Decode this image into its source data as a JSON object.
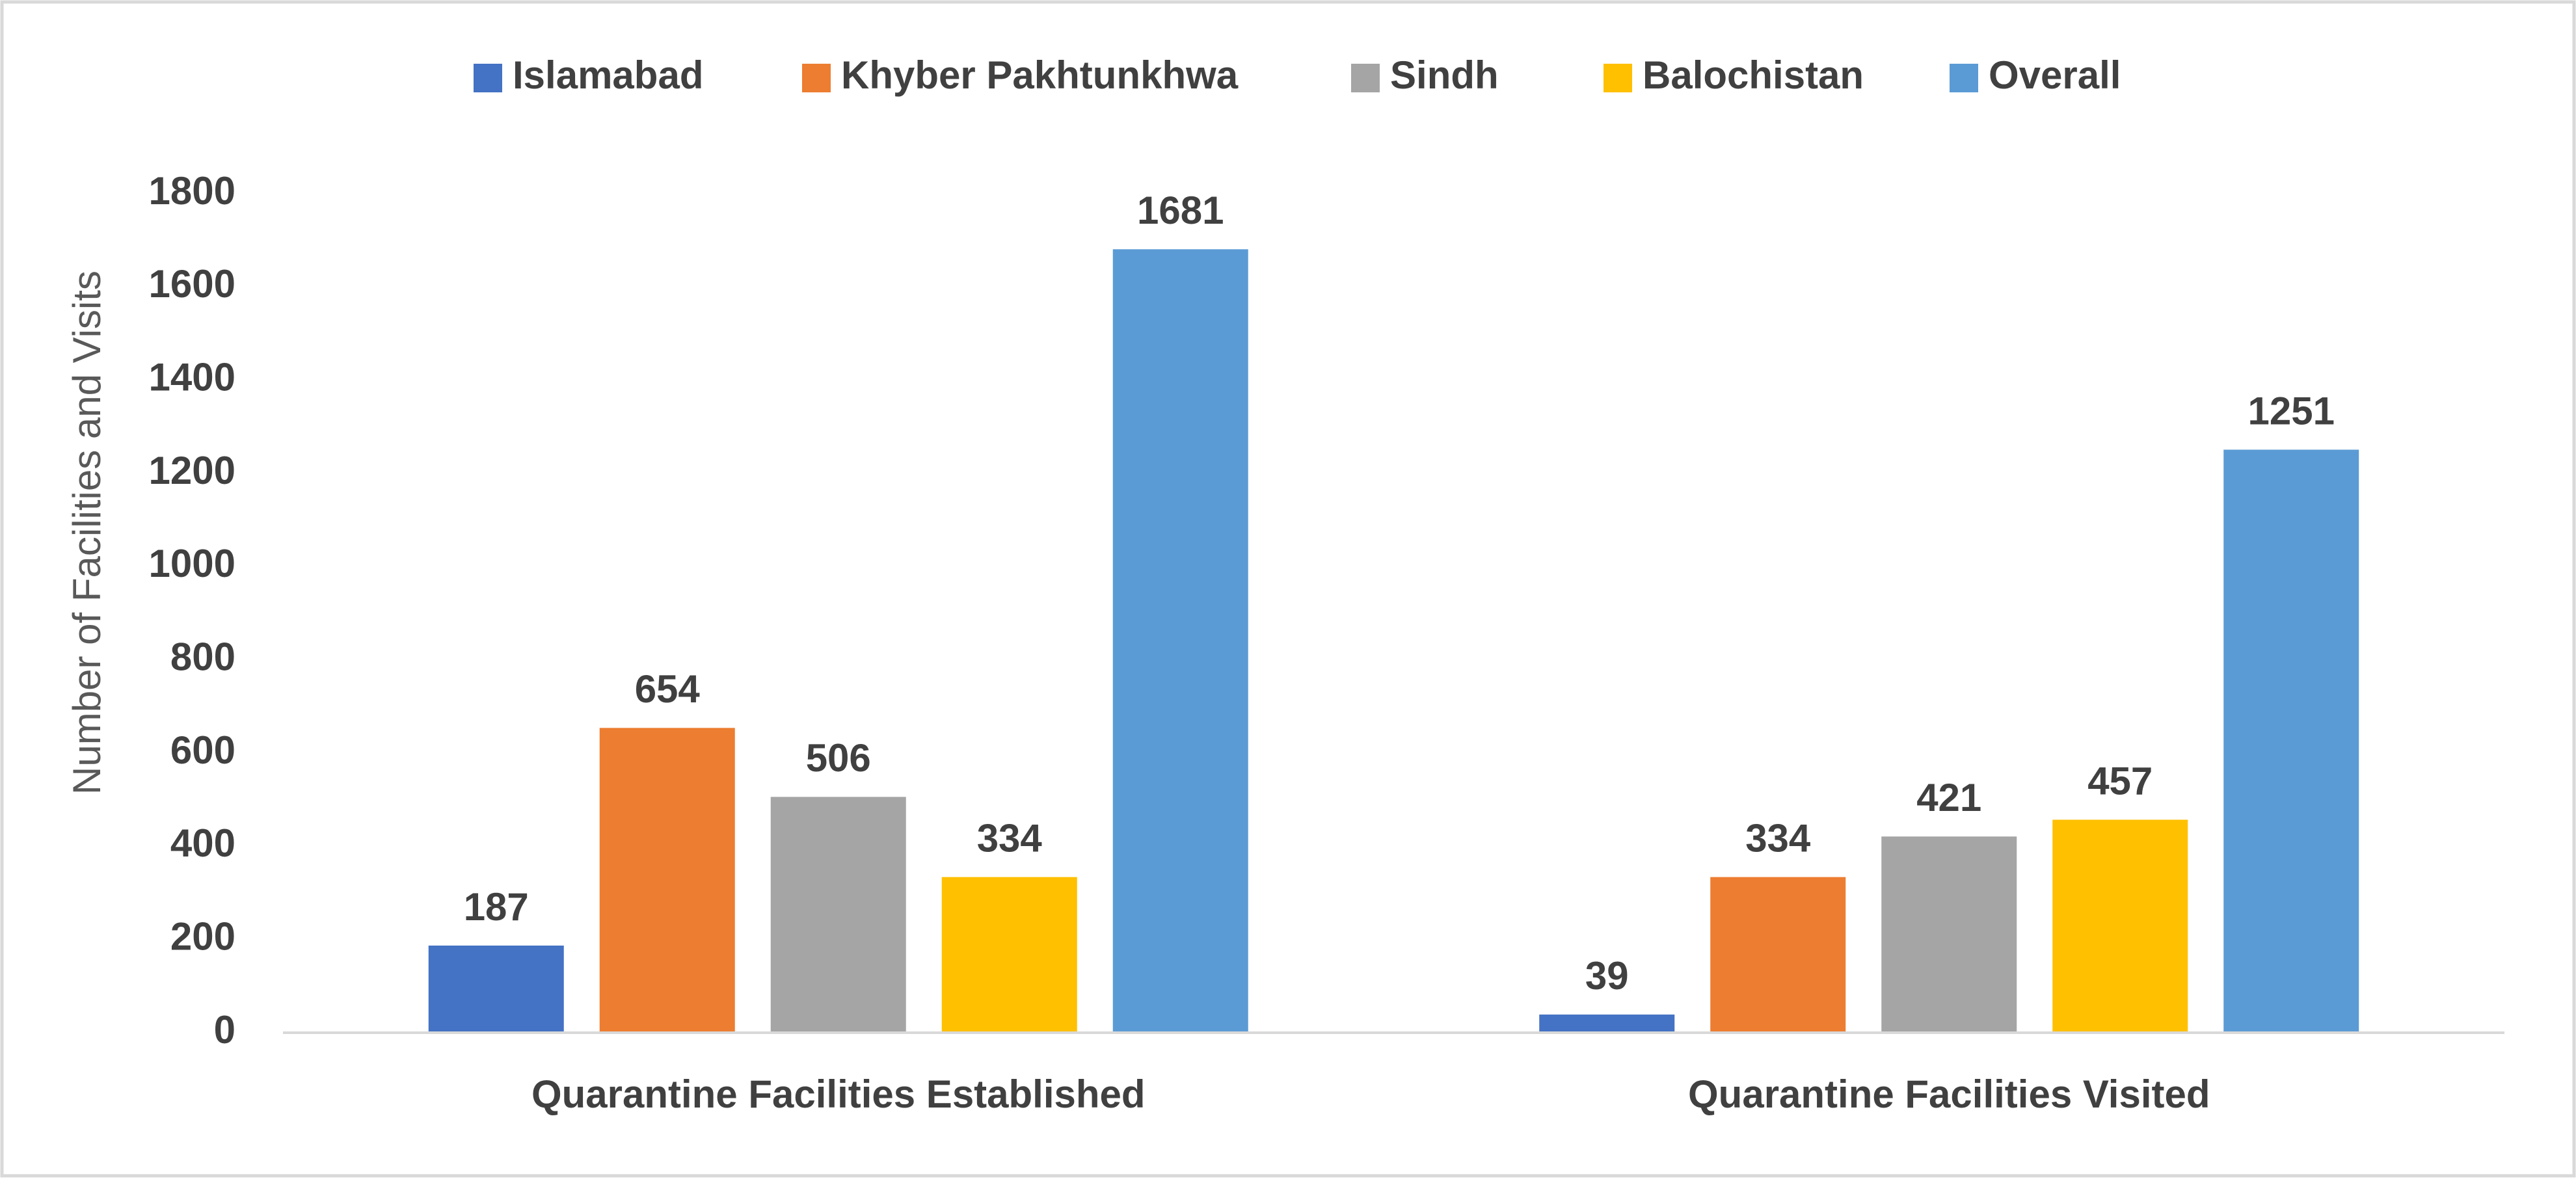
{
  "chart_data": {
    "type": "bar",
    "title": "",
    "xlabel": "",
    "ylabel": "Number of Facilities and Visits",
    "categories": [
      "Quarantine Facilities Established",
      "Quarantine Facilities Visited"
    ],
    "series": [
      {
        "name": "Islamabad",
        "color": "#4472C4",
        "values": [
          187,
          39
        ]
      },
      {
        "name": "Khyber Pakhtunkhwa",
        "color": "#ED7D31",
        "values": [
          654,
          334
        ]
      },
      {
        "name": "Sindh",
        "color": "#A5A5A5",
        "values": [
          506,
          421
        ]
      },
      {
        "name": "Balochistan",
        "color": "#FFC000",
        "values": [
          334,
          457
        ]
      },
      {
        "name": "Overall",
        "color": "#5B9BD5",
        "values": [
          1681,
          1251
        ]
      }
    ],
    "ylim": [
      0,
      1800
    ],
    "yticks": [
      "0",
      "200",
      "400",
      "600",
      "800",
      "1000",
      "1200",
      "1400",
      "1600",
      "1800"
    ],
    "grid": false,
    "legend_position": "top-center",
    "data_labels": true
  }
}
